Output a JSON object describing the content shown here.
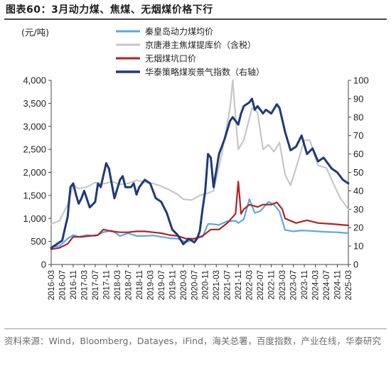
{
  "header": {
    "title": "图表60：3月动力煤、焦煤、无烟煤价格下行"
  },
  "footer": {
    "source": "资料来源：Wind，Bloomberg，Datayes，iFind，海关总署，百度指数，产业在线，华泰研究"
  },
  "chart_data": {
    "type": "line",
    "y_left": {
      "unit_label": "(元/吨)",
      "range": [
        0,
        4000
      ],
      "ticks": [
        "0",
        "500",
        "1,000",
        "1,500",
        "2,000",
        "2,500",
        "3,000",
        "3,500",
        "4,000"
      ]
    },
    "y_right": {
      "range": [
        0,
        100
      ],
      "ticks": [
        "0",
        "10",
        "20",
        "30",
        "40",
        "50",
        "60",
        "70",
        "80",
        "90",
        "100"
      ]
    },
    "x": {
      "range": [
        "2016-03",
        "2025-03"
      ],
      "ticks": [
        "2016-03",
        "2016-07",
        "2016-11",
        "2017-03",
        "2017-07",
        "2017-11",
        "2018-03",
        "2018-07",
        "2018-11",
        "2019-03",
        "2019-07",
        "2019-11",
        "2020-03",
        "2020-07",
        "2020-11",
        "2021-03",
        "2021-07",
        "2021-11",
        "2022-03",
        "2022-07",
        "2022-11",
        "2023-03",
        "2023-07",
        "2023-11",
        "2024-03",
        "2024-07",
        "2024-11",
        "2025-03"
      ]
    },
    "legend_placement": "top",
    "series": [
      {
        "name": "秦皇岛动力煤均价",
        "axis": "left",
        "color": "#59a8e6",
        "points": [
          [
            "2016-03",
            380
          ],
          [
            "2016-06",
            400
          ],
          [
            "2016-09",
            560
          ],
          [
            "2016-11",
            640
          ],
          [
            "2017-01",
            600
          ],
          [
            "2017-04",
            640
          ],
          [
            "2017-07",
            620
          ],
          [
            "2017-10",
            700
          ],
          [
            "2018-01",
            740
          ],
          [
            "2018-04",
            620
          ],
          [
            "2018-07",
            680
          ],
          [
            "2018-10",
            620
          ],
          [
            "2019-01",
            620
          ],
          [
            "2019-04",
            630
          ],
          [
            "2019-07",
            600
          ],
          [
            "2019-10",
            570
          ],
          [
            "2020-01",
            560
          ],
          [
            "2020-04",
            480
          ],
          [
            "2020-07",
            560
          ],
          [
            "2020-10",
            600
          ],
          [
            "2020-12",
            880
          ],
          [
            "2021-01",
            880
          ],
          [
            "2021-04",
            860
          ],
          [
            "2021-07",
            940
          ],
          [
            "2021-10",
            950
          ],
          [
            "2021-11",
            900
          ],
          [
            "2022-01",
            980
          ],
          [
            "2022-03",
            1420
          ],
          [
            "2022-05",
            1120
          ],
          [
            "2022-07",
            1160
          ],
          [
            "2022-10",
            1360
          ],
          [
            "2022-12",
            1300
          ],
          [
            "2023-02",
            1150
          ],
          [
            "2023-04",
            750
          ],
          [
            "2023-07",
            720
          ],
          [
            "2023-10",
            740
          ],
          [
            "2024-01",
            730
          ],
          [
            "2024-06",
            710
          ],
          [
            "2024-11",
            700
          ],
          [
            "2025-03",
            680
          ]
        ]
      },
      {
        "name": "京唐港主焦煤提库价（含税）",
        "axis": "left",
        "color": "#c7c7c7",
        "points": [
          [
            "2016-03",
            880
          ],
          [
            "2016-06",
            950
          ],
          [
            "2016-09",
            1300
          ],
          [
            "2016-11",
            1720
          ],
          [
            "2017-01",
            1650
          ],
          [
            "2017-04",
            1680
          ],
          [
            "2017-07",
            1780
          ],
          [
            "2017-10",
            1750
          ],
          [
            "2018-01",
            1800
          ],
          [
            "2018-04",
            1740
          ],
          [
            "2018-07",
            1760
          ],
          [
            "2018-10",
            1830
          ],
          [
            "2019-01",
            1780
          ],
          [
            "2019-04",
            1760
          ],
          [
            "2019-07",
            1700
          ],
          [
            "2019-10",
            1620
          ],
          [
            "2020-01",
            1520
          ],
          [
            "2020-03",
            1420
          ],
          [
            "2020-06",
            1400
          ],
          [
            "2020-09",
            1500
          ],
          [
            "2020-12",
            1550
          ],
          [
            "2021-02",
            1600
          ],
          [
            "2021-05",
            2400
          ],
          [
            "2021-08",
            3400
          ],
          [
            "2021-09",
            4100
          ],
          [
            "2021-10",
            3200
          ],
          [
            "2021-11",
            2500
          ],
          [
            "2022-01",
            2700
          ],
          [
            "2022-04",
            3400
          ],
          [
            "2022-06",
            3300
          ],
          [
            "2022-08",
            2500
          ],
          [
            "2022-10",
            2600
          ],
          [
            "2022-12",
            2450
          ],
          [
            "2023-02",
            2650
          ],
          [
            "2023-04",
            1950
          ],
          [
            "2023-06",
            1720
          ],
          [
            "2023-08",
            2100
          ],
          [
            "2023-11",
            2700
          ],
          [
            "2024-01",
            2700
          ],
          [
            "2024-04",
            2150
          ],
          [
            "2024-07",
            2100
          ],
          [
            "2024-10",
            1700
          ],
          [
            "2024-12",
            1450
          ],
          [
            "2025-03",
            1200
          ]
        ]
      },
      {
        "name": "无烟煤坑口价",
        "axis": "left",
        "color": "#b22222",
        "points": [
          [
            "2016-03",
            330
          ],
          [
            "2016-06",
            360
          ],
          [
            "2016-09",
            450
          ],
          [
            "2016-11",
            600
          ],
          [
            "2017-02",
            600
          ],
          [
            "2017-05",
            620
          ],
          [
            "2017-08",
            640
          ],
          [
            "2017-10",
            760
          ],
          [
            "2018-01",
            720
          ],
          [
            "2018-04",
            700
          ],
          [
            "2018-07",
            700
          ],
          [
            "2018-10",
            720
          ],
          [
            "2019-01",
            720
          ],
          [
            "2019-04",
            700
          ],
          [
            "2019-07",
            680
          ],
          [
            "2019-10",
            640
          ],
          [
            "2020-01",
            620
          ],
          [
            "2020-04",
            560
          ],
          [
            "2020-07",
            560
          ],
          [
            "2020-10",
            620
          ],
          [
            "2021-01",
            760
          ],
          [
            "2021-04",
            760
          ],
          [
            "2021-07",
            900
          ],
          [
            "2021-10",
            1100
          ],
          [
            "2021-11",
            1800
          ],
          [
            "2021-12",
            1100
          ],
          [
            "2022-01",
            1200
          ],
          [
            "2022-03",
            1300
          ],
          [
            "2022-06",
            1250
          ],
          [
            "2022-08",
            1300
          ],
          [
            "2022-11",
            1300
          ],
          [
            "2023-01",
            1350
          ],
          [
            "2023-03",
            1200
          ],
          [
            "2023-04",
            1000
          ],
          [
            "2023-08",
            900
          ],
          [
            "2023-12",
            960
          ],
          [
            "2024-04",
            900
          ],
          [
            "2024-09",
            880
          ],
          [
            "2025-03",
            850
          ]
        ]
      },
      {
        "name": "华泰策略煤炭景气指数（右轴）",
        "axis": "right",
        "color": "#1f3a78",
        "points": [
          [
            "2016-03",
            9
          ],
          [
            "2016-07",
            13
          ],
          [
            "2016-09",
            26
          ],
          [
            "2016-10",
            42
          ],
          [
            "2016-11",
            44
          ],
          [
            "2016-12",
            38
          ],
          [
            "2017-01",
            33
          ],
          [
            "2017-02",
            36
          ],
          [
            "2017-03",
            40
          ],
          [
            "2017-05",
            31
          ],
          [
            "2017-07",
            34
          ],
          [
            "2017-08",
            44
          ],
          [
            "2017-09",
            42
          ],
          [
            "2017-11",
            55
          ],
          [
            "2017-12",
            52
          ],
          [
            "2018-01",
            44
          ],
          [
            "2018-02",
            36
          ],
          [
            "2018-04",
            46
          ],
          [
            "2018-05",
            48
          ],
          [
            "2018-06",
            42
          ],
          [
            "2018-08",
            42
          ],
          [
            "2018-09",
            44
          ],
          [
            "2018-10",
            38
          ],
          [
            "2018-11",
            42
          ],
          [
            "2019-01",
            46
          ],
          [
            "2019-03",
            44
          ],
          [
            "2019-05",
            36
          ],
          [
            "2019-07",
            34
          ],
          [
            "2019-09",
            28
          ],
          [
            "2019-11",
            19
          ],
          [
            "2020-01",
            16
          ],
          [
            "2020-03",
            11
          ],
          [
            "2020-05",
            14
          ],
          [
            "2020-07",
            12
          ],
          [
            "2020-08",
            14
          ],
          [
            "2020-09",
            18
          ],
          [
            "2020-10",
            30
          ],
          [
            "2020-11",
            40
          ],
          [
            "2020-12",
            60
          ],
          [
            "2021-01",
            58
          ],
          [
            "2021-02",
            42
          ],
          [
            "2021-04",
            60
          ],
          [
            "2021-06",
            68
          ],
          [
            "2021-08",
            78
          ],
          [
            "2021-09",
            80
          ],
          [
            "2021-10",
            78
          ],
          [
            "2021-11",
            76
          ],
          [
            "2021-12",
            82
          ],
          [
            "2022-01",
            86
          ],
          [
            "2022-03",
            88
          ],
          [
            "2022-04",
            90
          ],
          [
            "2022-05",
            84
          ],
          [
            "2022-06",
            86
          ],
          [
            "2022-08",
            82
          ],
          [
            "2022-09",
            84
          ],
          [
            "2022-11",
            82
          ],
          [
            "2023-01",
            87
          ],
          [
            "2023-02",
            85
          ],
          [
            "2023-04",
            72
          ],
          [
            "2023-06",
            62
          ],
          [
            "2023-08",
            64
          ],
          [
            "2023-10",
            70
          ],
          [
            "2023-12",
            60
          ],
          [
            "2024-02",
            63
          ],
          [
            "2024-04",
            56
          ],
          [
            "2024-06",
            58
          ],
          [
            "2024-08",
            54
          ],
          [
            "2024-09",
            52
          ],
          [
            "2024-11",
            50
          ],
          [
            "2025-01",
            46
          ],
          [
            "2025-03",
            44
          ]
        ]
      }
    ]
  }
}
